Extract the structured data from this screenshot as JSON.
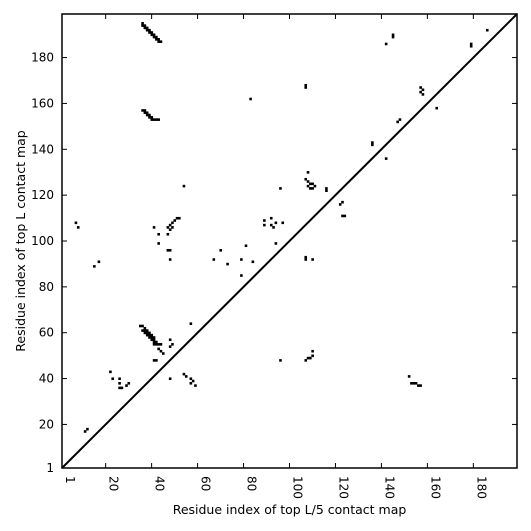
{
  "chart_data": {
    "type": "scatter",
    "xlabel": "Residue index of top L/5 contact map",
    "ylabel": "Residue index of top L contact map",
    "xlim": [
      1,
      199
    ],
    "ylim": [
      1,
      199
    ],
    "x_ticks": [
      1,
      20,
      40,
      60,
      80,
      100,
      120,
      140,
      160,
      180
    ],
    "y_ticks": [
      1,
      20,
      40,
      60,
      80,
      100,
      120,
      140,
      160,
      180
    ],
    "diagonal": true,
    "marker": "square",
    "marker_color": "#000000",
    "series": [
      {
        "points": [
          [
            36,
            195
          ],
          [
            36,
            194
          ],
          [
            37,
            194
          ],
          [
            37,
            193
          ],
          [
            38,
            193
          ],
          [
            38,
            192
          ],
          [
            39,
            192
          ],
          [
            39,
            191
          ],
          [
            40,
            191
          ],
          [
            40,
            190
          ],
          [
            41,
            190
          ],
          [
            41,
            189
          ],
          [
            42,
            189
          ],
          [
            42,
            188
          ],
          [
            43,
            188
          ],
          [
            43,
            187
          ],
          [
            44,
            187
          ],
          [
            36,
            157
          ],
          [
            37,
            157
          ],
          [
            37,
            156
          ],
          [
            38,
            156
          ],
          [
            38,
            155
          ],
          [
            39,
            155
          ],
          [
            39,
            154
          ],
          [
            40,
            154
          ],
          [
            40,
            153
          ],
          [
            41,
            153
          ],
          [
            42,
            153
          ],
          [
            43,
            153
          ],
          [
            107,
            168
          ],
          [
            107,
            167
          ],
          [
            83,
            162
          ],
          [
            142,
            186
          ],
          [
            145,
            190
          ],
          [
            145,
            189
          ],
          [
            147,
            152
          ],
          [
            148,
            153
          ],
          [
            179,
            186
          ],
          [
            179,
            185
          ],
          [
            186,
            192
          ],
          [
            157,
            167
          ],
          [
            157,
            165
          ],
          [
            158,
            166
          ],
          [
            158,
            164
          ],
          [
            164,
            158
          ],
          [
            54,
            124
          ],
          [
            96,
            123
          ],
          [
            107,
            127
          ],
          [
            108,
            126
          ],
          [
            109,
            125
          ],
          [
            110,
            125
          ],
          [
            111,
            124
          ],
          [
            108,
            124
          ],
          [
            109,
            123
          ],
          [
            110,
            123
          ],
          [
            116,
            123
          ],
          [
            116,
            122
          ],
          [
            108,
            130
          ],
          [
            123,
            117
          ],
          [
            122,
            116
          ],
          [
            123,
            111
          ],
          [
            124,
            111
          ],
          [
            136,
            143
          ],
          [
            136,
            142
          ],
          [
            142,
            136
          ],
          [
            47,
            106
          ],
          [
            48,
            107
          ],
          [
            49,
            108
          ],
          [
            50,
            109
          ],
          [
            51,
            110
          ],
          [
            52,
            110
          ],
          [
            49,
            106
          ],
          [
            48,
            105
          ],
          [
            47,
            103
          ],
          [
            43,
            103
          ],
          [
            41,
            106
          ],
          [
            43,
            99
          ],
          [
            47,
            96
          ],
          [
            48,
            96
          ],
          [
            48,
            92
          ],
          [
            89,
            109
          ],
          [
            89,
            107
          ],
          [
            92,
            110
          ],
          [
            92,
            107
          ],
          [
            93,
            106
          ],
          [
            94,
            108
          ],
          [
            97,
            108
          ],
          [
            81,
            98
          ],
          [
            94,
            99
          ],
          [
            70,
            96
          ],
          [
            67,
            92
          ],
          [
            73,
            90
          ],
          [
            79,
            92
          ],
          [
            84,
            91
          ],
          [
            79,
            85
          ],
          [
            107,
            93
          ],
          [
            107,
            92
          ],
          [
            110,
            92
          ],
          [
            7,
            108
          ],
          [
            8,
            106
          ],
          [
            15,
            89
          ],
          [
            17,
            91
          ],
          [
            35,
            63
          ],
          [
            36,
            63
          ],
          [
            37,
            62
          ],
          [
            36,
            61
          ],
          [
            37,
            61
          ],
          [
            38,
            61
          ],
          [
            37,
            60
          ],
          [
            38,
            60
          ],
          [
            39,
            60
          ],
          [
            38,
            59
          ],
          [
            39,
            59
          ],
          [
            40,
            59
          ],
          [
            39,
            58
          ],
          [
            40,
            58
          ],
          [
            41,
            58
          ],
          [
            40,
            57
          ],
          [
            41,
            57
          ],
          [
            41,
            56
          ],
          [
            42,
            56
          ],
          [
            41,
            55
          ],
          [
            42,
            55
          ],
          [
            43,
            55
          ],
          [
            44,
            55
          ],
          [
            43,
            53
          ],
          [
            44,
            52
          ],
          [
            45,
            51
          ],
          [
            41,
            48
          ],
          [
            42,
            48
          ],
          [
            48,
            57
          ],
          [
            49,
            55
          ],
          [
            48,
            54
          ],
          [
            57,
            64
          ],
          [
            96,
            48
          ],
          [
            107,
            48
          ],
          [
            108,
            49
          ],
          [
            109,
            49
          ],
          [
            110,
            52
          ],
          [
            110,
            50
          ],
          [
            22,
            43
          ],
          [
            23,
            40
          ],
          [
            26,
            40
          ],
          [
            26,
            38
          ],
          [
            26,
            36
          ],
          [
            27,
            36
          ],
          [
            29,
            37
          ],
          [
            30,
            38
          ],
          [
            48,
            40
          ],
          [
            54,
            42
          ],
          [
            55,
            41
          ],
          [
            57,
            40
          ],
          [
            57,
            38
          ],
          [
            58,
            39
          ],
          [
            59,
            37
          ],
          [
            152,
            41
          ],
          [
            153,
            38
          ],
          [
            154,
            38
          ],
          [
            155,
            38
          ],
          [
            156,
            37
          ],
          [
            157,
            37
          ],
          [
            11,
            17
          ],
          [
            12,
            18
          ]
        ]
      }
    ]
  }
}
